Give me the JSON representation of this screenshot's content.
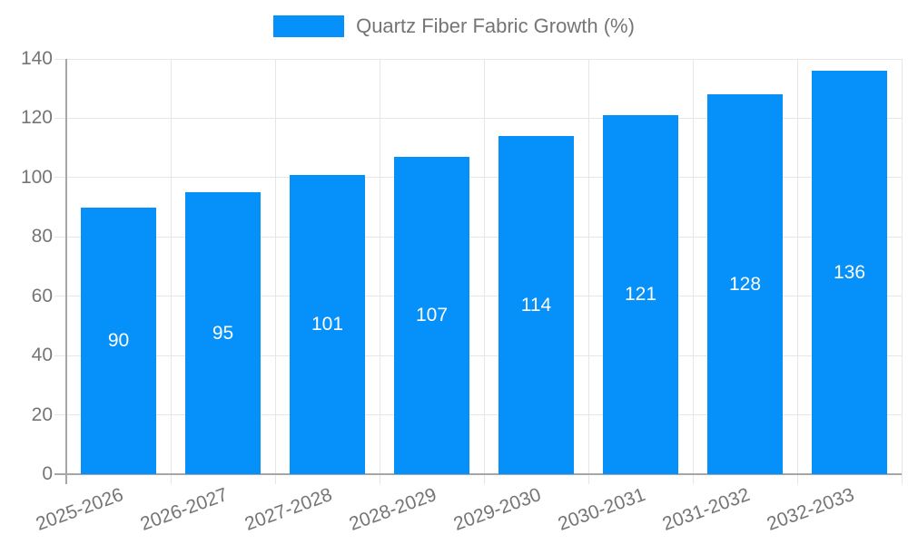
{
  "legend": {
    "label": "Quartz Fiber Fabric Growth (%)",
    "swatch_color": "#0690fa"
  },
  "chart_data": {
    "type": "bar",
    "categories": [
      "2025-2026",
      "2026-2027",
      "2027-2028",
      "2028-2029",
      "2029-2030",
      "2030-2031",
      "2031-2032",
      "2032-2033"
    ],
    "values": [
      90,
      95,
      101,
      107,
      114,
      121,
      128,
      136
    ],
    "series_name": "Quartz Fiber Fabric Growth (%)",
    "title": "",
    "xlabel": "",
    "ylabel": "",
    "ylim": [
      0,
      140
    ],
    "yticks": [
      0,
      20,
      40,
      60,
      80,
      100,
      120,
      140
    ],
    "grid": "both",
    "legend_position": "top-center",
    "bar_labels_inside": true,
    "x_label_rotation_deg": -20,
    "colors": {
      "bar": "#0690fa",
      "bar_label": "#ffffff",
      "grid": "#e6e6e6",
      "axis": "#a6a6a6",
      "tick_text": "#757575",
      "background": "#ffffff"
    }
  }
}
